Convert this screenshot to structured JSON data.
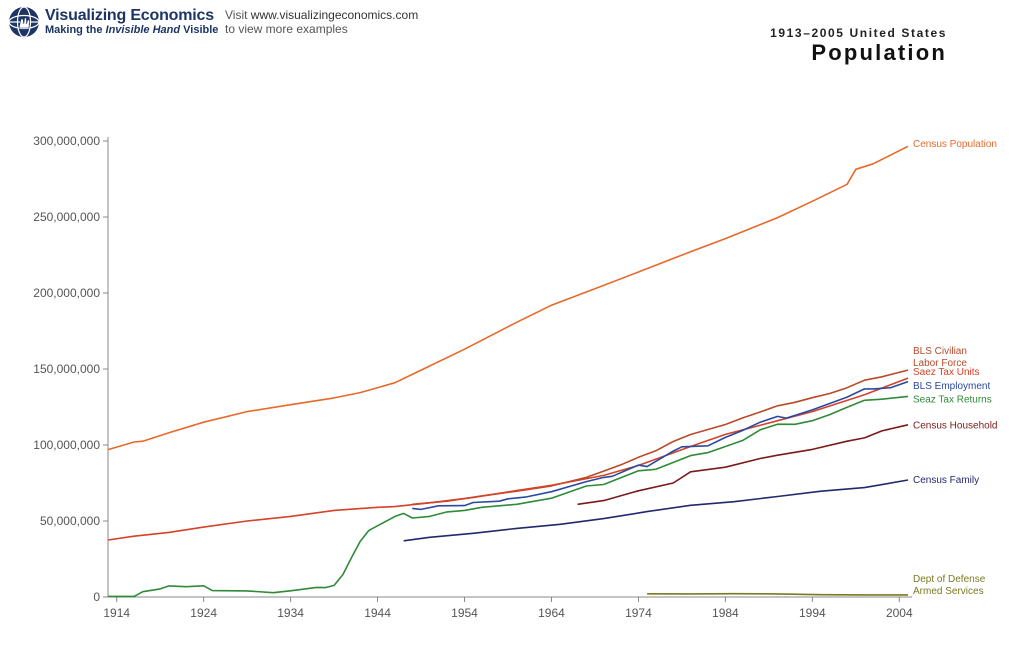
{
  "header": {
    "brand_name": "Visualizing Economics",
    "brand_tagline_pre": "Making the ",
    "brand_tagline_em": "Invisible Hand",
    "brand_tagline_post": " Visible",
    "visit_prefix": "Visit ",
    "visit_url": "www.visualizingeconomics.com",
    "visit_line2": "to view more examples",
    "subtitle": "1913–2005 United States",
    "title": "Population"
  },
  "colors": {
    "census_population": "#e8692a",
    "saez_tax_units": "#d4422a",
    "bls_civilian_labor_force": "#b84a28",
    "bls_employment": "#2a4aa0",
    "saez_tax_returns": "#2f8a3a",
    "census_household": "#7a1a1a",
    "census_family": "#23286e",
    "dept_of_defense": "#7a7a20",
    "axis": "#888888"
  },
  "chart_data": {
    "type": "line",
    "title": "Population",
    "subtitle": "1913–2005 United States",
    "xlabel": "",
    "ylabel": "",
    "xlim": [
      1913,
      2005
    ],
    "ylim": [
      0,
      300000000
    ],
    "x_ticks": [
      1914,
      1924,
      1934,
      1944,
      1954,
      1964,
      1974,
      1984,
      1994,
      2004
    ],
    "y_ticks": [
      0,
      50000000,
      100000000,
      150000000,
      200000000,
      250000000,
      300000000
    ],
    "y_tick_labels": [
      "0",
      "50,000,000",
      "100,000,000",
      "150,000,000",
      "200,000,000",
      "250,000,000",
      "300,000,000"
    ],
    "grid": false,
    "series": [
      {
        "name": "Census Population",
        "key": "census_population",
        "label_lines": [
          "Census Population"
        ],
        "label_y": 296000000,
        "points": [
          [
            1913,
            97000000
          ],
          [
            1916,
            102000000
          ],
          [
            1917,
            102500000
          ],
          [
            1920,
            108000000
          ],
          [
            1924,
            115000000
          ],
          [
            1929,
            122000000
          ],
          [
            1934,
            126500000
          ],
          [
            1939,
            131000000
          ],
          [
            1942,
            134500000
          ],
          [
            1946,
            141000000
          ],
          [
            1950,
            152000000
          ],
          [
            1954,
            163000000
          ],
          [
            1960,
            180700000
          ],
          [
            1964,
            192000000
          ],
          [
            1970,
            205000000
          ],
          [
            1974,
            213800000
          ],
          [
            1980,
            227200000
          ],
          [
            1984,
            235800000
          ],
          [
            1990,
            249600000
          ],
          [
            1994,
            260300000
          ],
          [
            1998,
            271500000
          ],
          [
            1999,
            281400000
          ],
          [
            2001,
            285000000
          ],
          [
            2005,
            296500000
          ]
        ]
      },
      {
        "name": "BLS Civilian Labor Force",
        "key": "bls_civilian_labor_force",
        "label_lines": [
          "BLS Civilian",
          "Labor Force"
        ],
        "label_y": 160000000,
        "points": [
          [
            1948,
            61000000
          ],
          [
            1952,
            63000000
          ],
          [
            1956,
            66500000
          ],
          [
            1960,
            69600000
          ],
          [
            1964,
            73100000
          ],
          [
            1968,
            78700000
          ],
          [
            1970,
            82800000
          ],
          [
            1972,
            87000000
          ],
          [
            1974,
            91900000
          ],
          [
            1976,
            96200000
          ],
          [
            1978,
            102300000
          ],
          [
            1980,
            106900000
          ],
          [
            1982,
            110200000
          ],
          [
            1984,
            113500000
          ],
          [
            1986,
            117800000
          ],
          [
            1988,
            121700000
          ],
          [
            1990,
            125800000
          ],
          [
            1992,
            128100000
          ],
          [
            1994,
            131100000
          ],
          [
            1996,
            133900000
          ],
          [
            1998,
            137700000
          ],
          [
            2000,
            142600000
          ],
          [
            2002,
            144900000
          ],
          [
            2005,
            149300000
          ]
        ]
      },
      {
        "name": "Saez Tax Units",
        "key": "saez_tax_units",
        "label_lines": [
          "Saez Tax Units"
        ],
        "label_y": 146000000,
        "points": [
          [
            1913,
            37500000
          ],
          [
            1916,
            40000000
          ],
          [
            1920,
            42500000
          ],
          [
            1924,
            46000000
          ],
          [
            1929,
            50000000
          ],
          [
            1934,
            53000000
          ],
          [
            1939,
            57000000
          ],
          [
            1944,
            59000000
          ],
          [
            1946,
            59500000
          ],
          [
            1950,
            62000000
          ],
          [
            1955,
            65500000
          ],
          [
            1960,
            70000000
          ],
          [
            1964,
            73500000
          ],
          [
            1970,
            80000000
          ],
          [
            1974,
            86500000
          ],
          [
            1980,
            99000000
          ],
          [
            1984,
            107000000
          ],
          [
            1990,
            116000000
          ],
          [
            1994,
            122000000
          ],
          [
            2000,
            133000000
          ],
          [
            2005,
            144000000
          ]
        ]
      },
      {
        "name": "BLS Employment",
        "key": "bls_employment",
        "label_lines": [
          "BLS Employment"
        ],
        "label_y": 137000000,
        "points": [
          [
            1948,
            58300000
          ],
          [
            1949,
            57600000
          ],
          [
            1951,
            60000000
          ],
          [
            1954,
            60100000
          ],
          [
            1955,
            62200000
          ],
          [
            1958,
            63000000
          ],
          [
            1959,
            64600000
          ],
          [
            1961,
            65700000
          ],
          [
            1964,
            69300000
          ],
          [
            1968,
            75900000
          ],
          [
            1970,
            78700000
          ],
          [
            1971,
            79400000
          ],
          [
            1974,
            86800000
          ],
          [
            1975,
            85800000
          ],
          [
            1978,
            96000000
          ],
          [
            1979,
            98800000
          ],
          [
            1982,
            99500000
          ],
          [
            1984,
            105000000
          ],
          [
            1986,
            109600000
          ],
          [
            1988,
            115000000
          ],
          [
            1990,
            118800000
          ],
          [
            1991,
            117700000
          ],
          [
            1994,
            123100000
          ],
          [
            1998,
            131500000
          ],
          [
            2000,
            136900000
          ],
          [
            2001,
            136900000
          ],
          [
            2003,
            137700000
          ],
          [
            2005,
            141700000
          ]
        ]
      },
      {
        "name": "Seaz Tax Returns",
        "key": "saez_tax_returns",
        "label_lines": [
          "Seaz Tax Returns"
        ],
        "label_y": 128000000,
        "points": [
          [
            1913,
            400000
          ],
          [
            1916,
            400000
          ],
          [
            1917,
            3500000
          ],
          [
            1919,
            5300000
          ],
          [
            1920,
            7300000
          ],
          [
            1922,
            6800000
          ],
          [
            1924,
            7400000
          ],
          [
            1925,
            4200000
          ],
          [
            1929,
            4000000
          ],
          [
            1932,
            2800000
          ],
          [
            1934,
            4100000
          ],
          [
            1937,
            6300000
          ],
          [
            1938,
            6200000
          ],
          [
            1939,
            7600000
          ],
          [
            1940,
            14700000
          ],
          [
            1941,
            25900000
          ],
          [
            1942,
            36600000
          ],
          [
            1943,
            43800000
          ],
          [
            1946,
            53000000
          ],
          [
            1947,
            55000000
          ],
          [
            1948,
            52000000
          ],
          [
            1950,
            53000000
          ],
          [
            1952,
            56000000
          ],
          [
            1954,
            57000000
          ],
          [
            1956,
            59000000
          ],
          [
            1960,
            61000000
          ],
          [
            1964,
            65000000
          ],
          [
            1968,
            73000000
          ],
          [
            1970,
            74000000
          ],
          [
            1974,
            83000000
          ],
          [
            1976,
            84000000
          ],
          [
            1980,
            93000000
          ],
          [
            1982,
            95000000
          ],
          [
            1984,
            99000000
          ],
          [
            1986,
            103000000
          ],
          [
            1988,
            110000000
          ],
          [
            1990,
            113700000
          ],
          [
            1992,
            113600000
          ],
          [
            1994,
            116000000
          ],
          [
            1996,
            120000000
          ],
          [
            1998,
            124800000
          ],
          [
            2000,
            129400000
          ],
          [
            2002,
            130100000
          ],
          [
            2005,
            132000000
          ]
        ]
      },
      {
        "name": "Census Household",
        "key": "census_household",
        "label_lines": [
          "Census Household"
        ],
        "label_y": 111000000,
        "points": [
          [
            1967,
            61000000
          ],
          [
            1970,
            63400000
          ],
          [
            1974,
            69900000
          ],
          [
            1978,
            75000000
          ],
          [
            1980,
            82400000
          ],
          [
            1984,
            85400000
          ],
          [
            1988,
            91100000
          ],
          [
            1990,
            93300000
          ],
          [
            1994,
            97100000
          ],
          [
            1998,
            102500000
          ],
          [
            2000,
            104700000
          ],
          [
            2002,
            109300000
          ],
          [
            2005,
            113300000
          ]
        ]
      },
      {
        "name": "Census Family",
        "key": "census_family",
        "label_lines": [
          "Census Family"
        ],
        "label_y": 75000000,
        "points": [
          [
            1947,
            37000000
          ],
          [
            1950,
            39300000
          ],
          [
            1955,
            41900000
          ],
          [
            1960,
            45100000
          ],
          [
            1965,
            47800000
          ],
          [
            1970,
            51600000
          ],
          [
            1975,
            56200000
          ],
          [
            1980,
            60300000
          ],
          [
            1985,
            62700000
          ],
          [
            1990,
            66100000
          ],
          [
            1995,
            69600000
          ],
          [
            2000,
            72000000
          ],
          [
            2005,
            77000000
          ]
        ]
      },
      {
        "name": "Dept of Defense Armed Services",
        "key": "dept_of_defense",
        "label_lines": [
          "Dept of Defense",
          "Armed Services"
        ],
        "label_y": 10000000,
        "points": [
          [
            1975,
            2130000
          ],
          [
            1980,
            2050000
          ],
          [
            1985,
            2150000
          ],
          [
            1990,
            2050000
          ],
          [
            1995,
            1520000
          ],
          [
            2000,
            1380000
          ],
          [
            2005,
            1390000
          ]
        ]
      }
    ]
  }
}
